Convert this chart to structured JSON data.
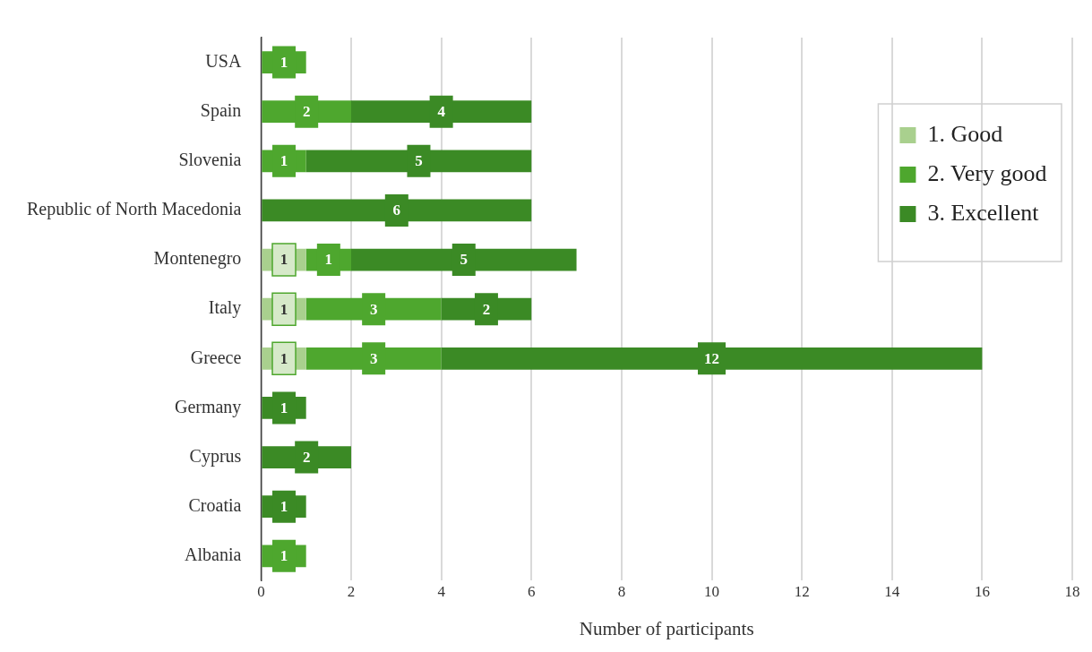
{
  "chart_data": {
    "type": "bar",
    "orientation": "horizontal",
    "stacked": true,
    "xlabel": "Number of participants",
    "categories": [
      "USA",
      "Spain",
      "Slovenia",
      "Republic of North Macedonia",
      "Montenegro",
      "Italy",
      "Greece",
      "Germany",
      "Cyprus",
      "Croatia",
      "Albania"
    ],
    "series": [
      {
        "name": "1. Good",
        "color": "#a9d08e",
        "values": [
          null,
          null,
          null,
          null,
          1,
          1,
          1,
          null,
          null,
          null,
          null
        ]
      },
      {
        "name": "2. Very good",
        "color": "#4ea72e",
        "values": [
          1,
          2,
          1,
          null,
          1,
          3,
          3,
          null,
          null,
          null,
          1
        ]
      },
      {
        "name": "3. Excellent",
        "color": "#3b8a25",
        "values": [
          null,
          4,
          5,
          6,
          5,
          2,
          12,
          1,
          2,
          1,
          null
        ]
      }
    ],
    "xlim": [
      0,
      18
    ],
    "xticks": [
      0,
      2,
      4,
      6,
      8,
      10,
      12,
      14,
      16,
      18
    ],
    "grid": "x",
    "legend": "top right",
    "data_labels": true
  }
}
